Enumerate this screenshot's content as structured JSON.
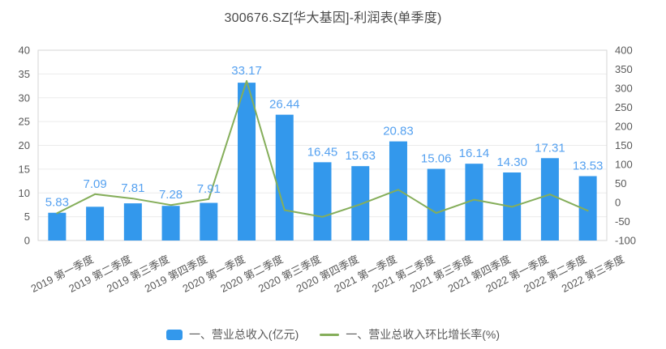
{
  "title": "300676.SZ[华大基因]-利润表(单季度)",
  "colors": {
    "bar": "#3398ec",
    "line": "#85ae5a",
    "value_label": "#55a1f0",
    "axis_text": "#595959",
    "title_text": "#4a4a4a",
    "legend_text": "#595959",
    "grid_line": "#ebebeb",
    "plot_border": "#d6d6d6",
    "background": "#ffffff"
  },
  "chart_data": {
    "type": "bar",
    "subtype": "bar+line dual-axis combo",
    "title": "300676.SZ[华大基因]-利润表(单季度)",
    "categories": [
      "2019 第一季度",
      "2019 第二季度",
      "2019 第三季度",
      "2019 第四季度",
      "2020 第一季度",
      "2020 第二季度",
      "2020 第三季度",
      "2020 第四季度",
      "2021 第一季度",
      "2021 第二季度",
      "2021 第三季度",
      "2021 第四季度",
      "2022 第一季度",
      "2022 第二季度",
      "2022 第三季度"
    ],
    "series": [
      {
        "name": "一、营业总收入(亿元)",
        "type": "bar",
        "y_axis": "left",
        "values": [
          5.83,
          7.09,
          7.81,
          7.28,
          7.91,
          33.17,
          26.44,
          16.45,
          15.63,
          20.83,
          15.06,
          16.14,
          14.3,
          17.31,
          13.53
        ],
        "value_labels_visible": true,
        "value_label_decimals": 2
      },
      {
        "name": "一、营业总收入环比增长率(%)",
        "type": "line",
        "y_axis": "right",
        "values": [
          -28.3,
          21.6,
          10.2,
          -6.8,
          8.7,
          319.3,
          -20.3,
          -37.8,
          -5.0,
          33.3,
          -27.7,
          7.2,
          -11.4,
          21.0,
          -21.8
        ],
        "value_labels_visible": false
      }
    ],
    "left_axis": {
      "min": 0,
      "max": 400,
      "note": "ticks below",
      "ticks": [
        0,
        5,
        10,
        15,
        20,
        25,
        30,
        35,
        40
      ],
      "min_val": 0,
      "max_val": 40,
      "step": 5
    },
    "right_axis": {
      "ticks": [
        -100,
        -50,
        0,
        50,
        100,
        150,
        200,
        250,
        300,
        350,
        400
      ],
      "min_val": -100,
      "max_val": 400,
      "step": 50
    },
    "grid": true,
    "x_labels_rotated": true,
    "legend_position": "bottom"
  }
}
